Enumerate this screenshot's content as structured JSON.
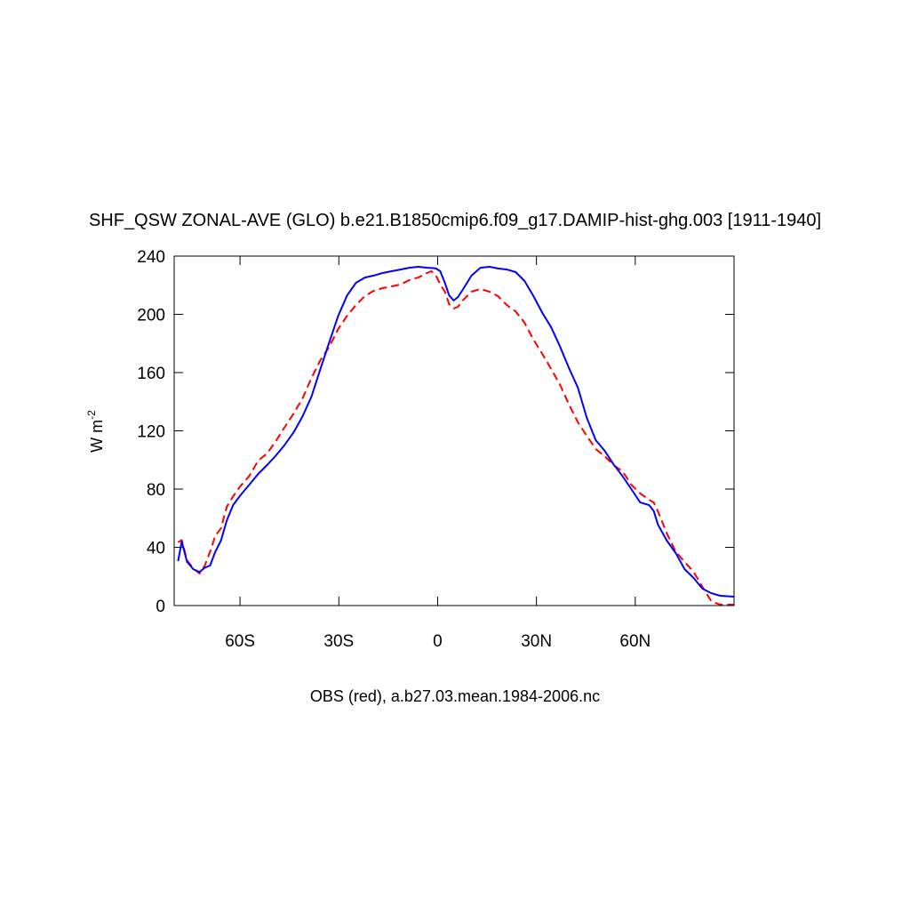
{
  "chart_data": {
    "type": "line",
    "title": "SHF_QSW ZONAL-AVE (GLO) b.e21.B1850cmip6.f09_g17.DAMIP-hist-ghg.003 [1911-1940]",
    "subtitle": "OBS (red), a.b27.03.mean.1984-2006.nc",
    "ylabel": {
      "text": "W m",
      "superscript": "-2"
    },
    "xlim": [
      -80,
      90
    ],
    "ylim": [
      0,
      240
    ],
    "xticks": [
      {
        "value": -60,
        "label": "60S"
      },
      {
        "value": -30,
        "label": "30S"
      },
      0,
      {
        "value": 30,
        "label": "30N"
      },
      {
        "value": 60,
        "label": "60N"
      }
    ],
    "yticks": [
      0,
      40,
      80,
      120,
      160,
      200,
      240
    ],
    "x": [
      -78.8,
      -77.7,
      -76.1,
      -74.2,
      -72.3,
      -70.7,
      -69.1,
      -67.5,
      -65.8,
      -64.0,
      -62.1,
      -59.9,
      -57.2,
      -54.5,
      -51.8,
      -49.1,
      -46.4,
      -43.7,
      -41.0,
      -38.3,
      -35.6,
      -32.9,
      -30.2,
      -27.5,
      -24.8,
      -22.1,
      -19.4,
      -16.7,
      -14.0,
      -11.3,
      -8.6,
      -5.9,
      -3.2,
      -1.9,
      -0.5,
      0.8,
      2.2,
      3.5,
      4.9,
      6.2,
      7.6,
      10.3,
      13.0,
      15.7,
      18.3,
      21.0,
      23.7,
      26.4,
      29.1,
      31.8,
      34.5,
      37.2,
      39.9,
      42.6,
      45.3,
      48.0,
      50.7,
      53.4,
      56.1,
      58.8,
      61.5,
      64.2,
      65.6,
      66.9,
      69.6,
      72.3,
      75.0,
      77.7,
      80.4,
      83.1,
      85.8,
      90.0
    ],
    "series": [
      {
        "color": "#ff0000",
        "dash": true,
        "values": [
          43.4,
          45,
          31,
          25.6,
          22,
          27.5,
          37,
          48,
          53,
          68,
          75,
          82,
          89,
          99.5,
          104.4,
          113,
          122.7,
          132,
          142.3,
          156.3,
          168.5,
          177.7,
          190,
          199,
          206.4,
          212.5,
          216.2,
          218,
          219.2,
          220.5,
          223.5,
          225.3,
          228.4,
          229.6,
          226.6,
          220.5,
          215.6,
          207,
          204,
          205.2,
          209.5,
          215.6,
          217.4,
          215.6,
          212.5,
          206.4,
          202,
          194.2,
          182.6,
          172.8,
          162.4,
          151.5,
          138,
          125.8,
          116.6,
          107.5,
          102.6,
          96.5,
          92.2,
          83,
          77,
          72.7,
          70.8,
          64.7,
          49.5,
          37,
          30,
          23.2,
          12.8,
          3,
          0.6,
          0.6
        ]
      },
      {
        "color": "#0000ff",
        "dash": false,
        "values": [
          30.5,
          44,
          30,
          25,
          23,
          26,
          27.5,
          37,
          44.6,
          58.6,
          69,
          75.7,
          83,
          90.4,
          96.5,
          103,
          110.5,
          119,
          130,
          143.5,
          162.4,
          180.8,
          199,
          213,
          221.7,
          225.3,
          226.6,
          228.4,
          229.6,
          230.8,
          232,
          232.7,
          232,
          231.8,
          231.5,
          229.6,
          221.7,
          213,
          209.5,
          211.9,
          216.8,
          226.6,
          232,
          232.7,
          231.5,
          230.8,
          229,
          222.9,
          212.5,
          201,
          191,
          177.7,
          163,
          149.6,
          128.9,
          113.6,
          106.3,
          97,
          89,
          80,
          70.8,
          69,
          65,
          55.6,
          44.6,
          36,
          25,
          19,
          11.6,
          8.5,
          6.7,
          6.1
        ]
      }
    ]
  }
}
